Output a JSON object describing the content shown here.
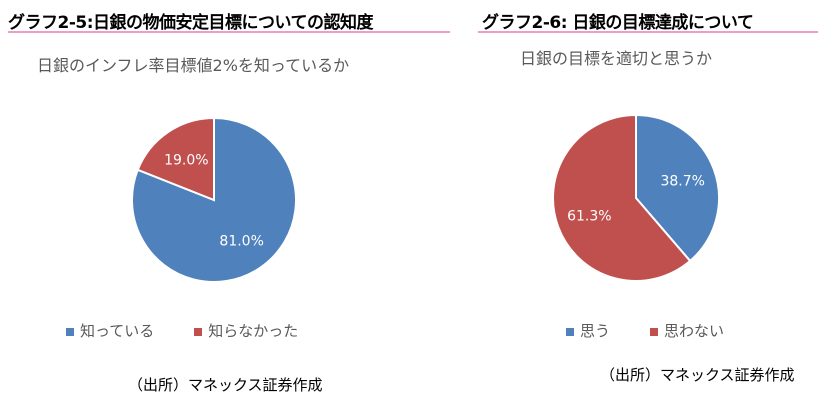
{
  "chart_data": [
    {
      "type": "pie",
      "header": "グラフ2-5:日銀の物価安定目標についての認知度",
      "title": "日銀のインフレ率目標値2%を知っているか",
      "categories": [
        "知っている",
        "知らなかった"
      ],
      "values": [
        81.0,
        19.0
      ],
      "labels": [
        "81.0%",
        "19.0%"
      ],
      "colors": [
        "#4F81BD",
        "#C0504D"
      ],
      "legend": "bottom",
      "source": "（出所）マネックス証券作成"
    },
    {
      "type": "pie",
      "header": "グラフ2-6: 日銀の目標達成について",
      "title": "日銀の目標を適切と思うか",
      "categories": [
        "思う",
        "思わない"
      ],
      "values": [
        38.7,
        61.3
      ],
      "labels": [
        "38.7%",
        "61.3%"
      ],
      "colors": [
        "#4F81BD",
        "#C0504D"
      ],
      "legend": "bottom",
      "source": "（出所）マネックス証券作成"
    }
  ]
}
